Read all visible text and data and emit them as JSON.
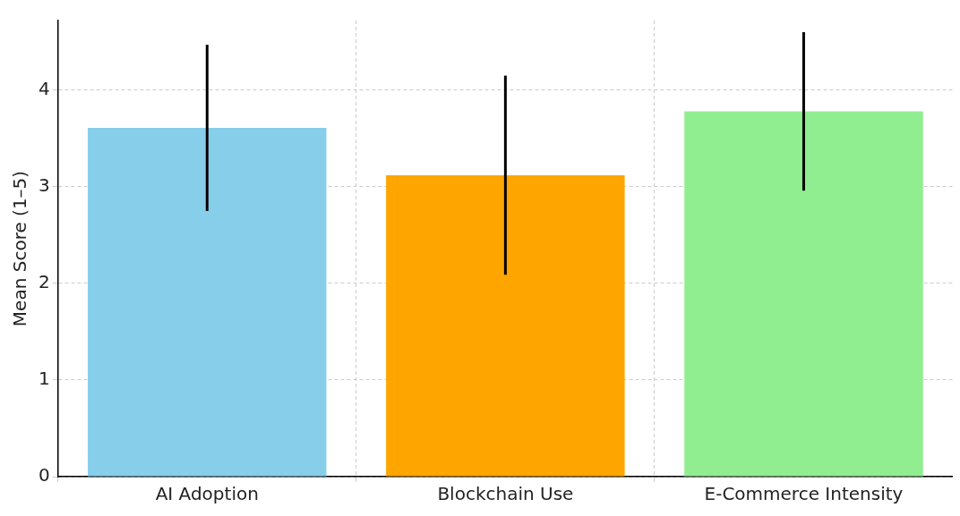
{
  "chart_data": {
    "type": "bar",
    "ylabel": "Mean Score (1–5)",
    "categories": [
      "AI Adoption",
      "Blockchain Use",
      "E-Commerce Intensity"
    ],
    "values": [
      3.61,
      3.12,
      3.78
    ],
    "errors": [
      0.86,
      1.03,
      0.82
    ],
    "colors": [
      "#87ceeb",
      "#ffa500",
      "#90ee90"
    ],
    "ylim": [
      0,
      4.72
    ],
    "yticks": [
      0,
      1,
      2,
      3,
      4
    ],
    "grid": true
  }
}
